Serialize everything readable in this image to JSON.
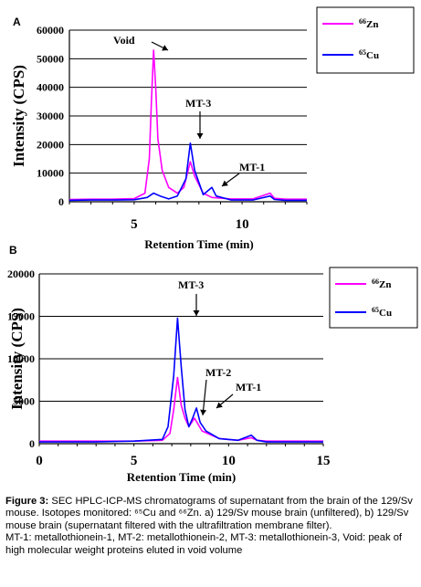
{
  "chart_data": [
    {
      "panel_label": "A",
      "type": "line",
      "ylabel": "Intensity (CPS)",
      "xlabel": "Retention Time (min)",
      "xlim": [
        2,
        13
      ],
      "ylim": [
        0,
        60000
      ],
      "x_ticks": [
        5,
        10
      ],
      "y_ticks": [
        "0",
        "10000",
        "20000",
        "30000",
        "40000",
        "50000",
        "60000"
      ],
      "grid": true,
      "legend": {
        "placement": "top-right",
        "entries": [
          {
            "label_sup": "66",
            "label": "Zn",
            "color": "#ff00ff"
          },
          {
            "label_sup": "65",
            "label": "Cu",
            "color": "#0000ff"
          }
        ]
      },
      "annotations": [
        {
          "text": "Void",
          "x": 5.9,
          "y": 53000
        },
        {
          "text": "MT-3",
          "x": 7.6,
          "y": 20500
        },
        {
          "text": "MT-1",
          "x": 8.6,
          "y": 5000
        }
      ],
      "series": [
        {
          "name": "66Zn",
          "color": "#ff00ff",
          "points": [
            [
              2,
              800
            ],
            [
              3,
              900
            ],
            [
              4,
              900
            ],
            [
              5,
              1100
            ],
            [
              5.5,
              3000
            ],
            [
              5.7,
              15000
            ],
            [
              5.8,
              35000
            ],
            [
              5.9,
              53000
            ],
            [
              6.0,
              40000
            ],
            [
              6.1,
              22000
            ],
            [
              6.3,
              11000
            ],
            [
              6.6,
              5000
            ],
            [
              7.0,
              3000
            ],
            [
              7.3,
              5000
            ],
            [
              7.6,
              14000
            ],
            [
              7.8,
              9000
            ],
            [
              8.2,
              3000
            ],
            [
              8.6,
              1500
            ],
            [
              9.5,
              1000
            ],
            [
              10.5,
              1000
            ],
            [
              11.3,
              3000
            ],
            [
              11.5,
              1200
            ],
            [
              12,
              900
            ],
            [
              13,
              900
            ]
          ]
        },
        {
          "name": "65Cu",
          "color": "#0000ff",
          "points": [
            [
              2,
              500
            ],
            [
              3,
              600
            ],
            [
              4,
              600
            ],
            [
              5,
              700
            ],
            [
              5.6,
              1500
            ],
            [
              5.9,
              3000
            ],
            [
              6.2,
              2000
            ],
            [
              6.6,
              1000
            ],
            [
              7.0,
              2000
            ],
            [
              7.4,
              8000
            ],
            [
              7.6,
              20500
            ],
            [
              7.8,
              11000
            ],
            [
              8.2,
              2500
            ],
            [
              8.6,
              5000
            ],
            [
              8.8,
              2000
            ],
            [
              9.5,
              600
            ],
            [
              10.5,
              600
            ],
            [
              11.3,
              2000
            ],
            [
              11.5,
              800
            ],
            [
              12,
              500
            ],
            [
              13,
              500
            ]
          ]
        }
      ]
    },
    {
      "panel_label": "B",
      "type": "line",
      "ylabel": "Intensity (CPS)",
      "xlabel": "Retention Time (min)",
      "xlim": [
        0,
        15
      ],
      "ylim": [
        0,
        20000
      ],
      "x_ticks": [
        0,
        5,
        10,
        15
      ],
      "y_ticks": [
        "0",
        "5000",
        "10000",
        "15000",
        "20000"
      ],
      "grid": true,
      "legend": {
        "placement": "top-right",
        "entries": [
          {
            "label_sup": "66",
            "label": "Zn",
            "color": "#ff00ff"
          },
          {
            "label_sup": "65",
            "label": "Cu",
            "color": "#0000ff"
          }
        ]
      },
      "annotations": [
        {
          "text": "MT-3",
          "x": 7.3,
          "y": 14500
        },
        {
          "text": "MT-2",
          "x": 7.9,
          "y": 3500
        },
        {
          "text": "MT-1",
          "x": 8.3,
          "y": 4200
        }
      ],
      "series": [
        {
          "name": "66Zn",
          "color": "#ff00ff",
          "points": [
            [
              0,
              300
            ],
            [
              3,
              300
            ],
            [
              5,
              300
            ],
            [
              6.5,
              400
            ],
            [
              6.9,
              1200
            ],
            [
              7.1,
              4000
            ],
            [
              7.3,
              7800
            ],
            [
              7.5,
              4500
            ],
            [
              7.7,
              3000
            ],
            [
              7.9,
              2000
            ],
            [
              8.2,
              3000
            ],
            [
              8.6,
              1500
            ],
            [
              9.5,
              600
            ],
            [
              10.5,
              400
            ],
            [
              11.2,
              700
            ],
            [
              11.5,
              400
            ],
            [
              12,
              300
            ],
            [
              15,
              300
            ]
          ]
        },
        {
          "name": "65Cu",
          "color": "#0000ff",
          "points": [
            [
              0,
              200
            ],
            [
              3,
              200
            ],
            [
              5,
              300
            ],
            [
              6.5,
              500
            ],
            [
              6.8,
              2000
            ],
            [
              7.1,
              8000
            ],
            [
              7.3,
              14800
            ],
            [
              7.5,
              9000
            ],
            [
              7.7,
              4000
            ],
            [
              7.9,
              2000
            ],
            [
              8.1,
              3000
            ],
            [
              8.3,
              4200
            ],
            [
              8.5,
              2500
            ],
            [
              8.8,
              1500
            ],
            [
              9.5,
              600
            ],
            [
              10.5,
              400
            ],
            [
              11.2,
              1000
            ],
            [
              11.5,
              400
            ],
            [
              12,
              200
            ],
            [
              15,
              200
            ]
          ]
        }
      ]
    }
  ],
  "caption": {
    "figure_label": "Figure 3:",
    "text": "SEC HPLC-ICP-MS chromatograms of supernatant from the brain of the 129/Sv mouse. Isotopes monitored: ⁶⁵Cu and ⁶⁶Zn. a) 129/Sv mouse brain (unfiltered), b) 129/Sv mouse brain (supernatant filtered with the ultrafiltration membrane filter).",
    "line2": "MT-1: metallothionein-1, MT-2: metallothionein-2, MT-3: metallothionein-3, Void: peak of high molecular weight proteins eluted in void volume"
  }
}
